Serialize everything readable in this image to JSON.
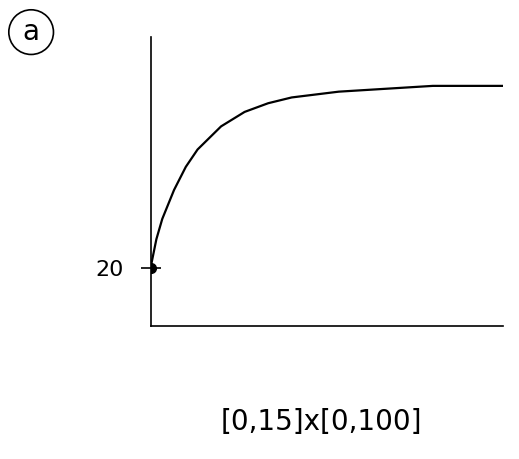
{
  "chart_data": {
    "type": "line",
    "label": "a",
    "note": "[0,15]x[0,100]",
    "x": [
      0,
      0.25,
      0.5,
      1,
      1.5,
      2,
      3,
      4,
      5,
      6,
      8,
      10,
      12,
      15
    ],
    "values": [
      20,
      30,
      37,
      47,
      55,
      61,
      69,
      74,
      77,
      79,
      81,
      82,
      83,
      83
    ],
    "color": "#000000",
    "marker": "o",
    "xlim": [
      0,
      15
    ],
    "ylim": [
      0,
      100
    ],
    "xticks": [],
    "yticks": [
      20
    ],
    "tick_labels": "y",
    "grid": false
  }
}
